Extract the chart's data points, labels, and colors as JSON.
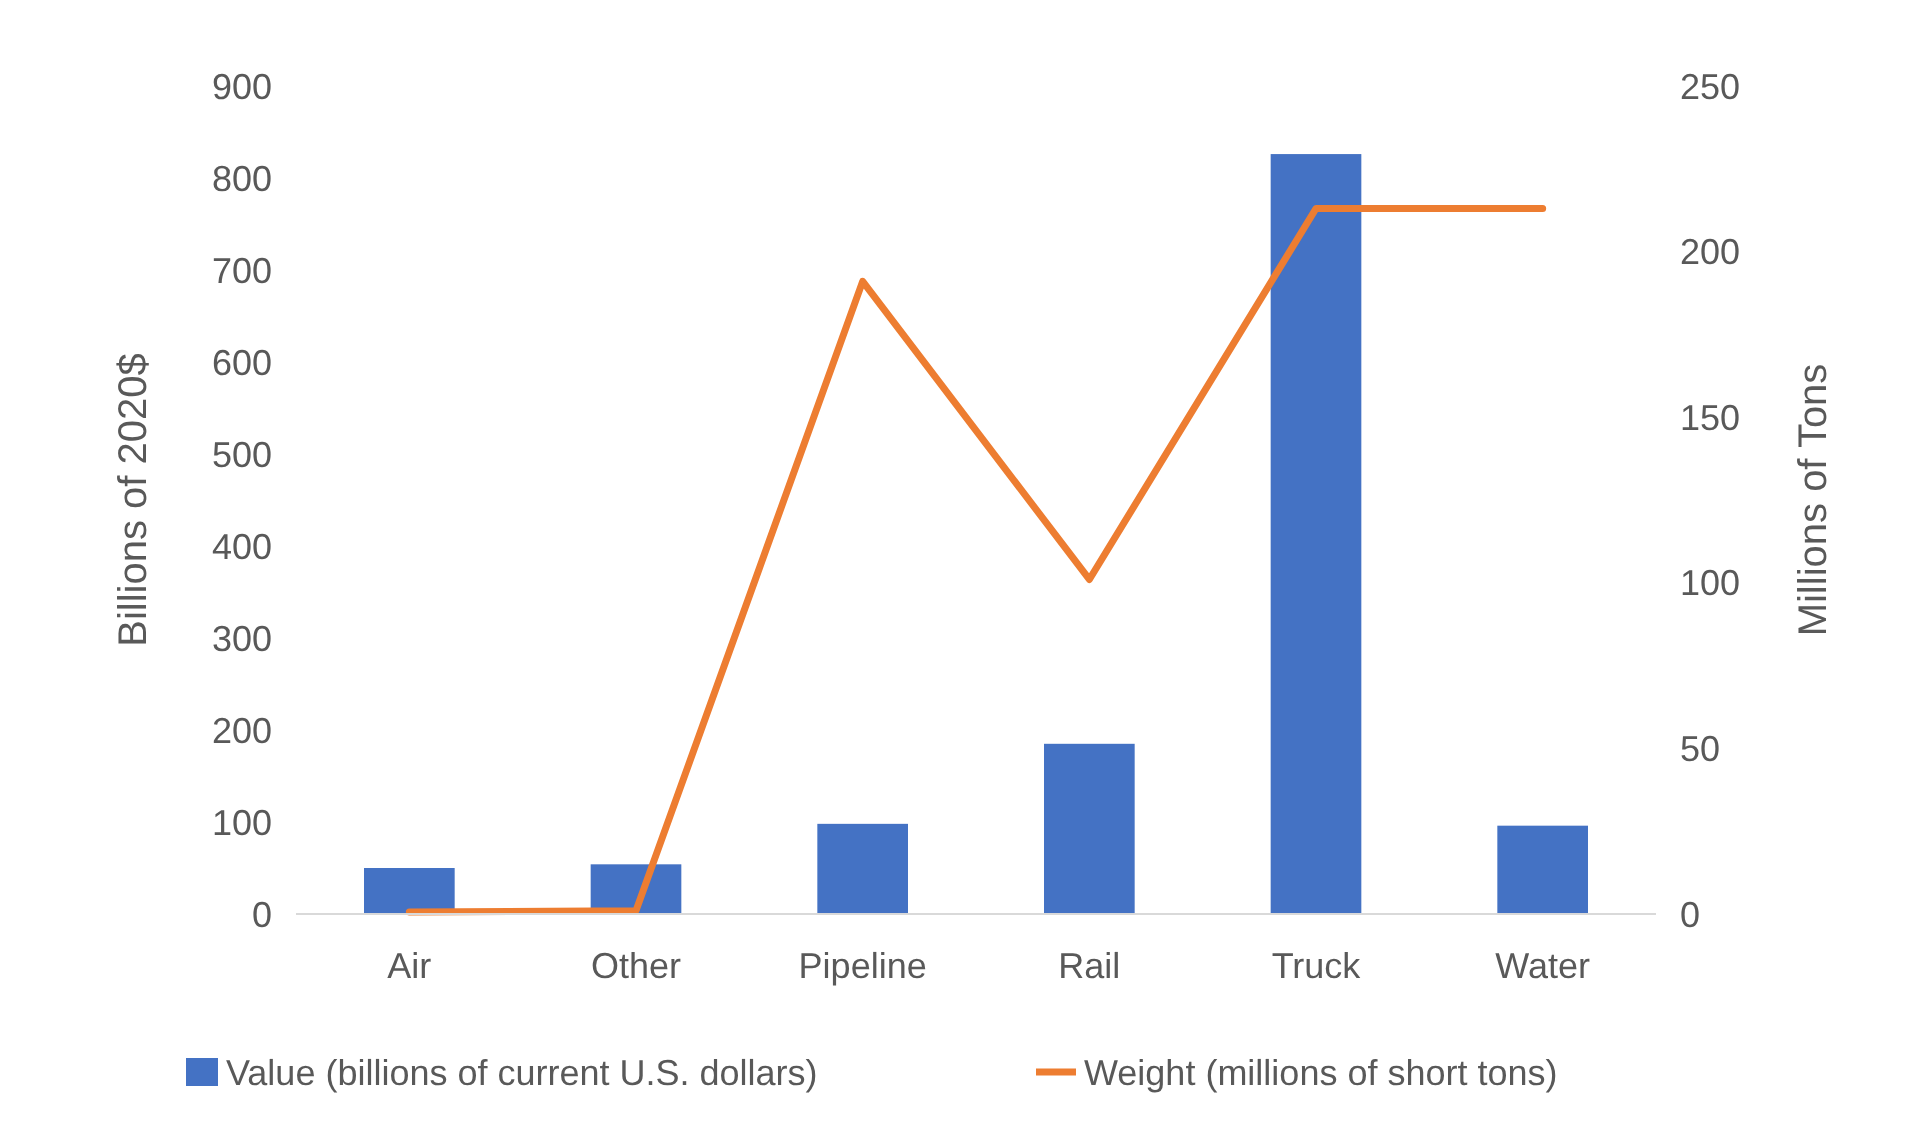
{
  "chart_data": {
    "type": "bar",
    "categories": [
      "Air",
      "Other",
      "Pipeline",
      "Rail",
      "Truck",
      "Water"
    ],
    "ylabel": "Billions of 2020$",
    "y2label": "Millions of Tons",
    "ylim": [
      0,
      900
    ],
    "yticks": [
      0,
      100,
      200,
      300,
      400,
      500,
      600,
      700,
      800,
      900
    ],
    "y2lim": [
      0,
      250
    ],
    "y2ticks": [
      0,
      50,
      100,
      150,
      200,
      250
    ],
    "legend": "bottom",
    "grid": false,
    "series": [
      {
        "name": "Value (billions of current U.S. dollars)",
        "color": "#4472c4",
        "values": [
          50,
          54,
          98,
          185,
          826,
          96
        ]
      },
      {
        "name": "Weight (millions of short tons)",
        "color": "#ed7d31",
        "type": "line",
        "axis": "y2",
        "values": [
          0.6,
          1,
          191,
          101,
          213,
          213
        ]
      }
    ]
  }
}
